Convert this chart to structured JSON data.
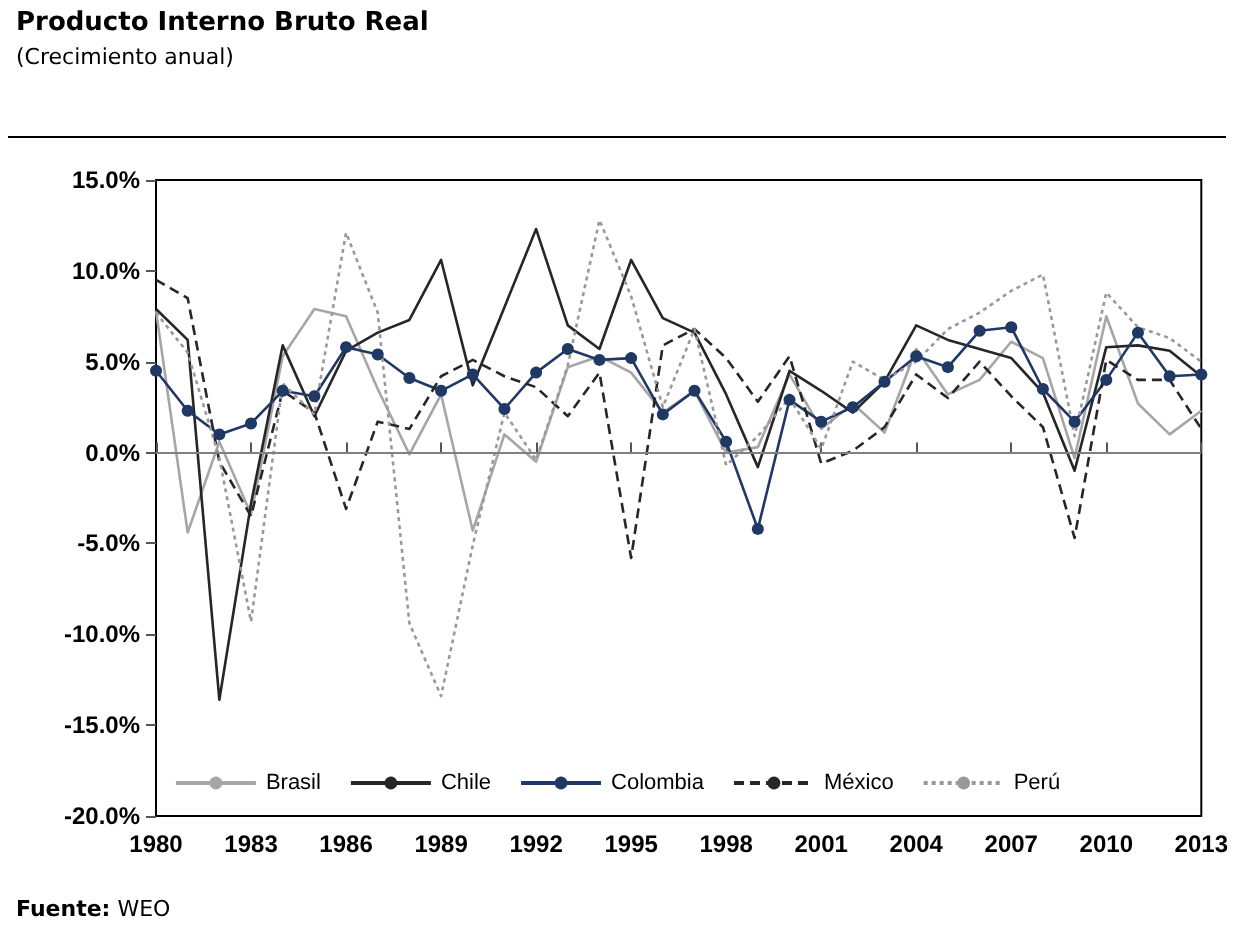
{
  "chart_data": {
    "type": "line",
    "title": "Producto Interno Bruto Real",
    "subtitle": "(Crecimiento anual)",
    "x": [
      1980,
      1981,
      1982,
      1983,
      1984,
      1985,
      1986,
      1987,
      1988,
      1989,
      1990,
      1991,
      1992,
      1993,
      1994,
      1995,
      1996,
      1997,
      1998,
      1999,
      2000,
      2001,
      2002,
      2003,
      2004,
      2005,
      2006,
      2007,
      2008,
      2009,
      2010,
      2011,
      2012,
      2013
    ],
    "series": [
      {
        "name": "Brasil",
        "color": "#a6a6a6",
        "line_style": "solid",
        "marker": "none",
        "values": [
          7.8,
          -4.4,
          0.6,
          -3.4,
          5.3,
          7.9,
          7.5,
          3.5,
          -0.1,
          3.2,
          -4.3,
          1.0,
          -0.5,
          4.7,
          5.3,
          4.4,
          2.2,
          3.4,
          0.0,
          0.3,
          4.3,
          1.3,
          2.7,
          1.1,
          5.7,
          3.2,
          4.0,
          6.1,
          5.2,
          -0.3,
          7.5,
          2.7,
          1.0,
          2.3
        ]
      },
      {
        "name": "Chile",
        "color": "#262626",
        "line_style": "solid",
        "marker": "none",
        "values": [
          7.9,
          6.2,
          -13.6,
          -2.8,
          5.9,
          2.0,
          5.6,
          6.6,
          7.3,
          10.6,
          3.7,
          8.0,
          12.3,
          7.0,
          5.7,
          10.6,
          7.4,
          6.6,
          3.2,
          -0.8,
          4.5,
          3.4,
          2.2,
          3.9,
          7.0,
          6.2,
          5.7,
          5.2,
          3.3,
          -1.0,
          5.8,
          5.9,
          5.6,
          4.2
        ]
      },
      {
        "name": "Colombia",
        "color": "#1f3864",
        "line_style": "solid",
        "marker": "circle",
        "values": [
          4.5,
          2.3,
          1.0,
          1.6,
          3.4,
          3.1,
          5.8,
          5.4,
          4.1,
          3.4,
          4.3,
          2.4,
          4.4,
          5.7,
          5.1,
          5.2,
          2.1,
          3.4,
          0.6,
          -4.2,
          2.9,
          1.7,
          2.5,
          3.9,
          5.3,
          4.7,
          6.7,
          6.9,
          3.5,
          1.7,
          4.0,
          6.6,
          4.2,
          4.3
        ]
      },
      {
        "name": "México",
        "color": "#262626",
        "line_style": "dashed",
        "marker": "none",
        "values": [
          9.5,
          8.5,
          -0.5,
          -3.5,
          3.4,
          2.2,
          -3.1,
          1.7,
          1.3,
          4.2,
          5.1,
          4.2,
          3.6,
          2.0,
          4.4,
          -5.8,
          5.9,
          6.8,
          5.2,
          2.8,
          5.3,
          -0.6,
          0.1,
          1.4,
          4.3,
          3.0,
          5.0,
          3.1,
          1.4,
          -4.7,
          5.1,
          4.0,
          4.0,
          1.3
        ]
      },
      {
        "name": "Perú",
        "color": "#999999",
        "line_style": "dotted",
        "marker": "none",
        "values": [
          7.7,
          5.5,
          -0.3,
          -9.3,
          3.8,
          2.1,
          12.1,
          7.7,
          -9.4,
          -13.4,
          -5.1,
          2.2,
          -0.4,
          4.8,
          12.8,
          8.6,
          2.5,
          6.8,
          -0.7,
          0.9,
          3.0,
          0.2,
          5.0,
          4.0,
          5.0,
          6.8,
          7.7,
          8.9,
          9.8,
          0.9,
          8.8,
          6.9,
          6.3,
          5.0
        ]
      }
    ],
    "xlim": [
      1980,
      2013
    ],
    "xticks": [
      1980,
      1983,
      1986,
      1989,
      1992,
      1995,
      1998,
      2001,
      2004,
      2007,
      2010,
      2013
    ],
    "ylim": [
      -20,
      15
    ],
    "yticks": [
      {
        "value": -20,
        "label": "-20.0%"
      },
      {
        "value": -15,
        "label": "-15.0%"
      },
      {
        "value": -10,
        "label": "-10.0%"
      },
      {
        "value": -5,
        "label": "-5.0%"
      },
      {
        "value": 0,
        "label": "0.0%"
      },
      {
        "value": 5,
        "label": "5.0%"
      },
      {
        "value": 10,
        "label": "10.0%"
      },
      {
        "value": 15,
        "label": "15.0%"
      }
    ],
    "ref_lines": [
      {
        "axis": "y",
        "value": 0,
        "color": "#808080"
      }
    ],
    "grid": false,
    "legend": "bottom",
    "annotations": [
      "Fuente: WEO"
    ]
  }
}
